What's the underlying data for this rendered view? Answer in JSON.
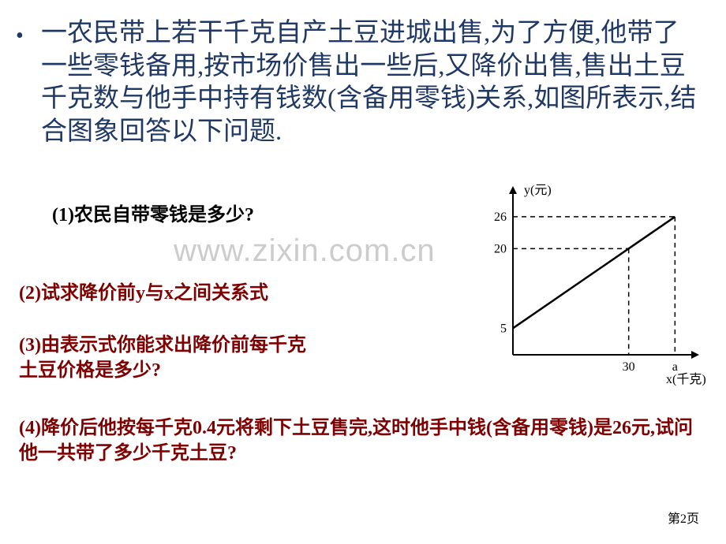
{
  "problem": "一农民带上若干千克自产土豆进城出售,为了方便,他带了一些零钱备用,按市场价售出一些后,又降价出售,售出土豆千克数与他手中持有钱数(含备用零钱)关系,如图所表示,结合图象回答以下问题.",
  "q1": "(1)农民自带零钱是多少?",
  "q2": "(2)试求降价前y与x之间关系式",
  "q3_line1": "(3)由表示式你能求出降价前每千克",
  "q3_line2": "土豆价格是多少?",
  "q4": "(4)降价后他按每千克0.4元将剩下土豆售完,这时他手中钱(含备用零钱)是26元,试问他一共带了多少千克土豆?",
  "watermark": "www.zixin.com.cn",
  "page": "第2页",
  "chart": {
    "type": "line",
    "y_axis_label": "y(元)",
    "x_axis_label": "x(千克)",
    "y_ticks": [
      5,
      20,
      26
    ],
    "x_ticks": [
      "30",
      "a"
    ],
    "x_tick_positions": [
      30,
      42
    ],
    "x_range": [
      0,
      45
    ],
    "y_range": [
      0,
      30
    ],
    "points": [
      {
        "x": 0,
        "y": 5
      },
      {
        "x": 30,
        "y": 20
      },
      {
        "x": 42,
        "y": 26
      }
    ],
    "dash_lines": [
      {
        "from": {
          "x": 0,
          "y": 20
        },
        "to": {
          "x": 30,
          "y": 20
        }
      },
      {
        "from": {
          "x": 30,
          "y": 20
        },
        "to": {
          "x": 30,
          "y": 0
        }
      },
      {
        "from": {
          "x": 0,
          "y": 26
        },
        "to": {
          "x": 42,
          "y": 26
        }
      },
      {
        "from": {
          "x": 42,
          "y": 26
        },
        "to": {
          "x": 42,
          "y": 0
        }
      }
    ],
    "line_color": "#000000",
    "bg_color": "#ffffff",
    "font_size": 16
  }
}
